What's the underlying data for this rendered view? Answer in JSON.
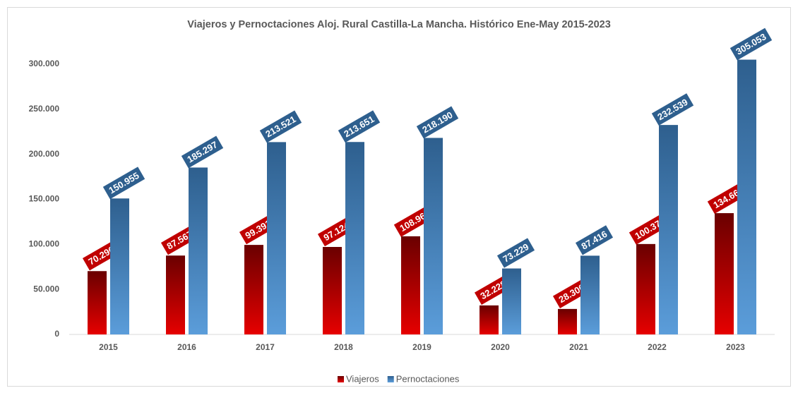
{
  "chart_data": {
    "type": "bar",
    "title": "Viajeros y Pernoctaciones Aloj. Rural Castilla-La Mancha. Histórico Ene-May 2015-2023",
    "categories": [
      "2015",
      "2016",
      "2017",
      "2018",
      "2019",
      "2020",
      "2021",
      "2022",
      "2023"
    ],
    "series": [
      {
        "name": "Viajeros",
        "color": "#c00000",
        "values": [
          70296,
          87567,
          99391,
          97124,
          108963,
          32228,
          28300,
          100378,
          134664
        ],
        "value_labels": [
          "70.296",
          "87.567",
          "99.391",
          "97.124",
          "108.963",
          "32.228",
          "28.300",
          "100.378",
          "134.664"
        ]
      },
      {
        "name": "Pernoctaciones",
        "color": "#2e5f8e",
        "values": [
          150955,
          185297,
          213521,
          213651,
          218190,
          73229,
          87416,
          232539,
          305053
        ],
        "value_labels": [
          "150.955",
          "185.297",
          "213.521",
          "213.651",
          "218.190",
          "73.229",
          "87.416",
          "232.539",
          "305.053"
        ]
      }
    ],
    "ylim": [
      0,
      300000
    ],
    "yticks": [
      0,
      {
        "value": 50000,
        "label": "50.000"
      },
      {
        "value": 100000,
        "label": "100.000"
      },
      {
        "value": 150000,
        "label": "150.000"
      },
      {
        "value": 200000,
        "label": "200.000"
      },
      {
        "value": 250000,
        "label": "250.000"
      },
      {
        "value": 300000,
        "label": "300.000"
      }
    ],
    "legend": "bottom"
  }
}
